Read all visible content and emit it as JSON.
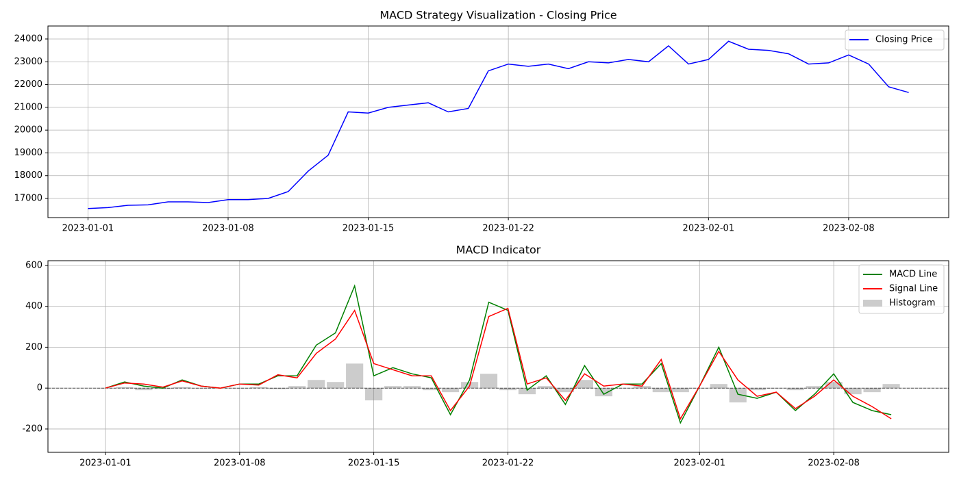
{
  "chart_data": [
    {
      "type": "line",
      "title": "MACD Strategy Visualization - Closing Price",
      "x": [
        "2023-01-01",
        "2023-01-02",
        "2023-01-03",
        "2023-01-04",
        "2023-01-05",
        "2023-01-06",
        "2023-01-07",
        "2023-01-08",
        "2023-01-09",
        "2023-01-10",
        "2023-01-11",
        "2023-01-12",
        "2023-01-13",
        "2023-01-14",
        "2023-01-15",
        "2023-01-16",
        "2023-01-17",
        "2023-01-18",
        "2023-01-19",
        "2023-01-20",
        "2023-01-21",
        "2023-01-22",
        "2023-01-23",
        "2023-01-24",
        "2023-01-25",
        "2023-01-26",
        "2023-01-27",
        "2023-01-28",
        "2023-01-29",
        "2023-01-30",
        "2023-01-31",
        "2023-02-01",
        "2023-02-02",
        "2023-02-03",
        "2023-02-04",
        "2023-02-05",
        "2023-02-06",
        "2023-02-07",
        "2023-02-08",
        "2023-02-09",
        "2023-02-10",
        "2023-02-11"
      ],
      "series": [
        {
          "name": "Closing Price",
          "color": "#0000ff",
          "values": [
            16560,
            16600,
            16700,
            16720,
            16850,
            16850,
            16820,
            16950,
            16950,
            17000,
            17300,
            18200,
            18900,
            20800,
            20750,
            21000,
            21100,
            21200,
            20800,
            20950,
            22600,
            22900,
            22800,
            22900,
            22700,
            23000,
            22950,
            23100,
            23000,
            23700,
            22900,
            23100,
            23900,
            23550,
            23500,
            23350,
            22900,
            22950,
            23300,
            22900,
            21900,
            21650
          ]
        }
      ],
      "xlim": [
        "2022-12-30",
        "2023-02-13"
      ],
      "xticks": [
        "2023-01-01",
        "2023-01-08",
        "2023-01-15",
        "2023-01-22",
        "2023-02-01",
        "2023-02-08"
      ],
      "ylim": [
        16160,
        24570
      ],
      "yticks": [
        17000,
        18000,
        19000,
        20000,
        21000,
        22000,
        23000,
        24000
      ],
      "grid": true,
      "legend": "upper right"
    },
    {
      "type": "line",
      "title": "MACD Indicator",
      "x": [
        "2023-01-01",
        "2023-01-02",
        "2023-01-03",
        "2023-01-04",
        "2023-01-05",
        "2023-01-06",
        "2023-01-07",
        "2023-01-08",
        "2023-01-09",
        "2023-01-10",
        "2023-01-11",
        "2023-01-12",
        "2023-01-13",
        "2023-01-14",
        "2023-01-15",
        "2023-01-16",
        "2023-01-17",
        "2023-01-18",
        "2023-01-19",
        "2023-01-20",
        "2023-01-21",
        "2023-01-22",
        "2023-01-23",
        "2023-01-24",
        "2023-01-25",
        "2023-01-26",
        "2023-01-27",
        "2023-01-28",
        "2023-01-29",
        "2023-01-30",
        "2023-01-31",
        "2023-02-01",
        "2023-02-02",
        "2023-02-03",
        "2023-02-04",
        "2023-02-05",
        "2023-02-06",
        "2023-02-07",
        "2023-02-08",
        "2023-02-09",
        "2023-02-10",
        "2023-02-11"
      ],
      "series": [
        {
          "name": "MACD Line",
          "color": "#008000",
          "type": "line",
          "values": [
            0,
            30,
            10,
            0,
            40,
            10,
            0,
            20,
            20,
            60,
            60,
            210,
            270,
            500,
            60,
            100,
            70,
            50,
            -130,
            40,
            420,
            380,
            -10,
            60,
            -80,
            110,
            -30,
            20,
            20,
            120,
            -170,
            10,
            200,
            -30,
            -50,
            -20,
            -110,
            -30,
            70,
            -70,
            -110,
            -130
          ]
        },
        {
          "name": "Signal Line",
          "color": "#ff0000",
          "type": "line",
          "values": [
            0,
            25,
            20,
            5,
            35,
            10,
            0,
            20,
            15,
            65,
            50,
            170,
            240,
            380,
            120,
            90,
            60,
            60,
            -110,
            10,
            350,
            390,
            20,
            50,
            -60,
            70,
            10,
            20,
            10,
            140,
            -150,
            10,
            180,
            40,
            -40,
            -20,
            -100,
            -40,
            40,
            -40,
            -90,
            -150
          ]
        },
        {
          "name": "Histogram",
          "color": "#808080",
          "type": "bar",
          "values": [
            0,
            5,
            -10,
            -5,
            5,
            0,
            0,
            0,
            5,
            -5,
            10,
            40,
            30,
            120,
            -60,
            10,
            10,
            -10,
            -20,
            30,
            70,
            -10,
            -30,
            10,
            -20,
            40,
            -40,
            0,
            10,
            -20,
            -20,
            0,
            20,
            -70,
            -10,
            0,
            -10,
            10,
            30,
            -30,
            -20,
            20
          ]
        }
      ],
      "xlim": [
        "2022-12-29",
        "2023-02-14"
      ],
      "xticks": [
        "2023-01-01",
        "2023-01-08",
        "2023-01-15",
        "2023-01-22",
        "2023-02-01",
        "2023-02-08"
      ],
      "ylim": [
        -314,
        623
      ],
      "yticks": [
        -200,
        0,
        200,
        400,
        600
      ],
      "grid": true,
      "legend": "upper right"
    }
  ]
}
